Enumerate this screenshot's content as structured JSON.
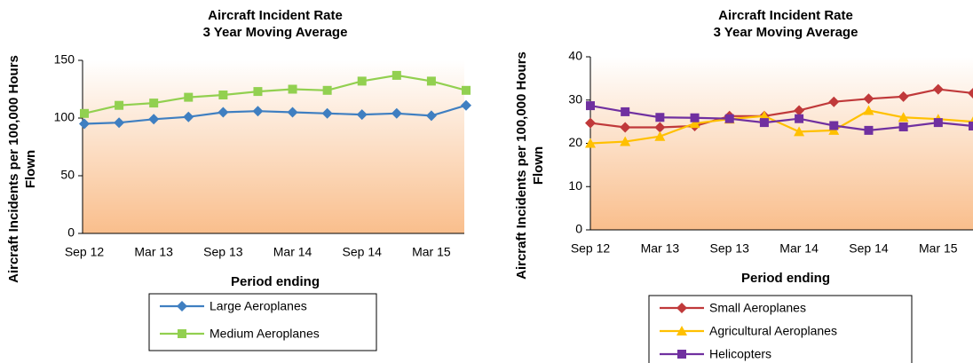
{
  "chart_data": [
    {
      "type": "line",
      "title": [
        "Aircraft Incident Rate",
        "3 Year Moving Average"
      ],
      "x_label": "Period ending",
      "y_label": [
        "Aircraft Incidents per 100,000 Hours",
        "Flown"
      ],
      "categories": [
        "Sep 12",
        null,
        "Mar 13",
        null,
        "Sep 13",
        null,
        "Mar 14",
        null,
        "Sep 14",
        null,
        "Mar 15",
        null
      ],
      "series": [
        {
          "name": "Large Aeroplanes",
          "color": "#3f7fc1",
          "marker": "diamond",
          "values": [
            95,
            96,
            99,
            101,
            105,
            106,
            105,
            104,
            103,
            104,
            102,
            111
          ]
        },
        {
          "name": "Medium Aeroplanes",
          "color": "#92d050",
          "marker": "square",
          "values": [
            104,
            111,
            113,
            118,
            120,
            123,
            125,
            124,
            132,
            137,
            132,
            124
          ]
        }
      ],
      "ylim": [
        0,
        150
      ],
      "yticks": [
        0,
        50,
        100,
        150
      ],
      "grid": false
    },
    {
      "type": "line",
      "title": [
        "Aircraft Incident Rate",
        "3 Year Moving Average"
      ],
      "x_label": "Period ending",
      "y_label": [
        "Aircraft Incidents per 100,000 Hours",
        "Flown"
      ],
      "categories": [
        "Sep 12",
        null,
        "Mar 13",
        null,
        "Sep 13",
        null,
        "Mar 14",
        null,
        "Sep 14",
        null,
        "Mar 15",
        null
      ],
      "series": [
        {
          "name": "Small Aeroplanes",
          "color": "#c0393a",
          "marker": "diamond",
          "values": [
            24.7,
            23.7,
            23.7,
            24,
            26.3,
            26.3,
            27.6,
            29.6,
            30.3,
            30.8,
            32.5,
            31.6
          ]
        },
        {
          "name": "Agricultural Aeroplanes",
          "color": "#ffc000",
          "marker": "triangle",
          "values": [
            20,
            20.4,
            21.6,
            24.6,
            25.6,
            26.3,
            22.7,
            23,
            27.6,
            26,
            25.6,
            25
          ]
        },
        {
          "name": "Helicopters",
          "color": "#7030a0",
          "marker": "square",
          "values": [
            28.7,
            27.3,
            26,
            25.9,
            25.7,
            24.8,
            25.7,
            24.1,
            23,
            23.8,
            24.8,
            24
          ]
        }
      ],
      "ylim": [
        0,
        40
      ],
      "yticks": [
        0,
        10,
        20,
        30,
        40
      ],
      "grid": false
    }
  ]
}
